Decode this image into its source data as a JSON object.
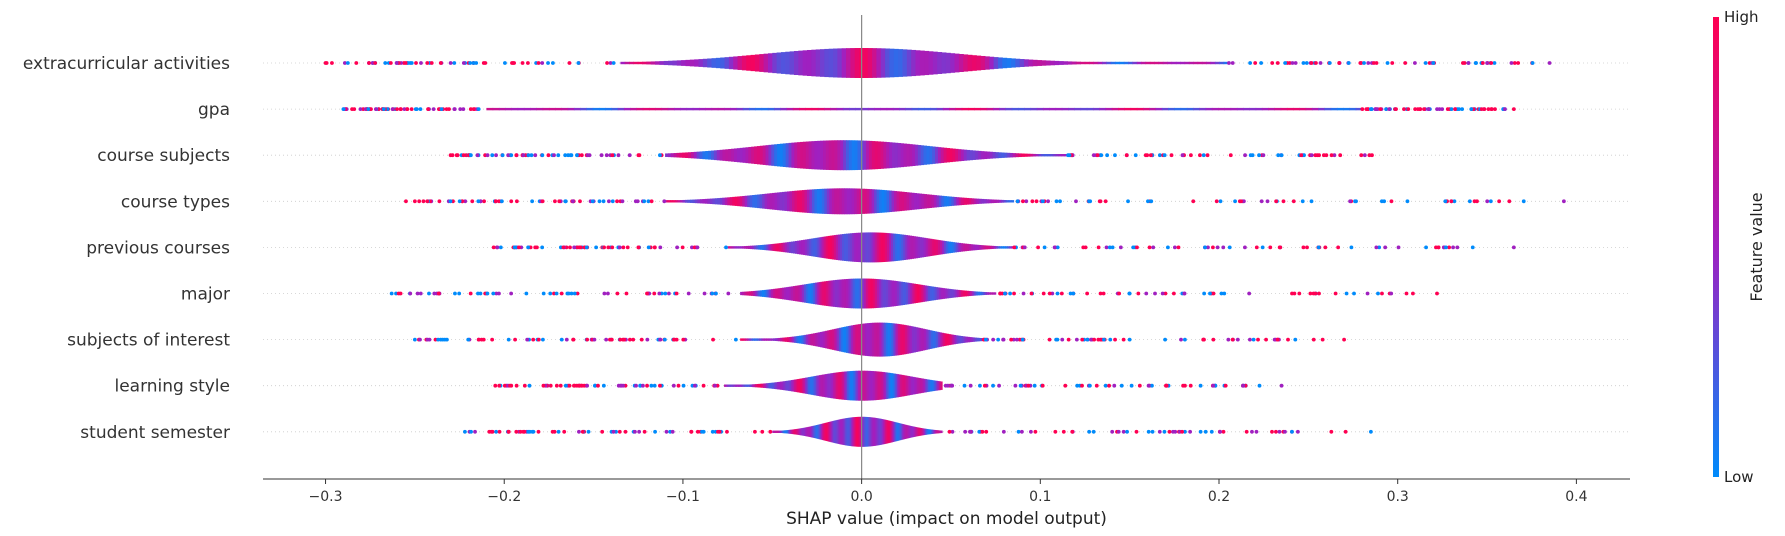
{
  "chart_data": {
    "type": "violin",
    "title": "",
    "xlabel": "SHAP value (impact on model output)",
    "ylabel": "",
    "xlim": [
      -0.335,
      0.43
    ],
    "xticks": [
      -0.3,
      -0.2,
      -0.1,
      0.0,
      0.1,
      0.2,
      0.3,
      0.4
    ],
    "xtick_labels": [
      "−0.3",
      "−0.2",
      "−0.1",
      "0.0",
      "0.1",
      "0.2",
      "0.3",
      "0.4"
    ],
    "grid": false,
    "colorbar": {
      "title": "Feature value",
      "high_label": "High",
      "low_label": "Low",
      "high_color": "#ff0052",
      "low_color": "#008bfb"
    },
    "features": [
      {
        "name": "extracurricular activities",
        "min": -0.3,
        "max": 0.385,
        "core": [
          -0.135,
          0.205
        ],
        "peak": 0.0,
        "sd": 0.055,
        "halfwidth": 15,
        "outliers": [
          -0.3,
          -0.23,
          0.32,
          0.385
        ]
      },
      {
        "name": "gpa",
        "min": -0.29,
        "max": 0.365,
        "core": [
          -0.21,
          0.28
        ],
        "peak": 0.0,
        "sd": 0.5,
        "halfwidth": 1,
        "outliers": [
          -0.29,
          -0.26,
          0.36,
          0.365
        ]
      },
      {
        "name": "course subjects",
        "min": -0.23,
        "max": 0.295,
        "core": [
          -0.11,
          0.115
        ],
        "peak": -0.01,
        "sd": 0.048,
        "halfwidth": 15,
        "outliers": [
          -0.23
        ]
      },
      {
        "name": "course types",
        "min": -0.255,
        "max": 0.393,
        "core": [
          -0.11,
          0.085
        ],
        "peak": -0.01,
        "sd": 0.042,
        "halfwidth": 13,
        "outliers": [
          -0.255,
          0.33,
          0.343,
          0.393
        ]
      },
      {
        "name": "previous courses",
        "min": -0.21,
        "max": 0.365,
        "core": [
          -0.075,
          0.085
        ],
        "peak": 0.005,
        "sd": 0.032,
        "halfwidth": 15,
        "outliers": [
          0.293,
          0.327,
          0.365
        ]
      },
      {
        "name": "major",
        "min": -0.263,
        "max": 0.322,
        "core": [
          -0.068,
          0.075
        ],
        "peak": 0.0,
        "sd": 0.032,
        "halfwidth": 15,
        "outliers": [
          -0.263,
          0.322
        ]
      },
      {
        "name": "subjects of interest",
        "min": -0.25,
        "max": 0.27,
        "core": [
          -0.068,
          0.068
        ],
        "peak": 0.01,
        "sd": 0.026,
        "halfwidth": 17,
        "outliers": [
          -0.25,
          -0.237,
          0.258,
          0.27
        ]
      },
      {
        "name": "learning style",
        "min": -0.205,
        "max": 0.235,
        "core": [
          -0.077,
          0.045
        ],
        "peak": 0.0,
        "sd": 0.028,
        "halfwidth": 15,
        "outliers": [
          -0.205,
          0.235
        ]
      },
      {
        "name": "student semester",
        "min": -0.222,
        "max": 0.285,
        "core": [
          -0.05,
          0.045
        ],
        "peak": 0.0,
        "sd": 0.02,
        "halfwidth": 15,
        "outliers": [
          -0.222,
          0.285
        ]
      }
    ]
  }
}
